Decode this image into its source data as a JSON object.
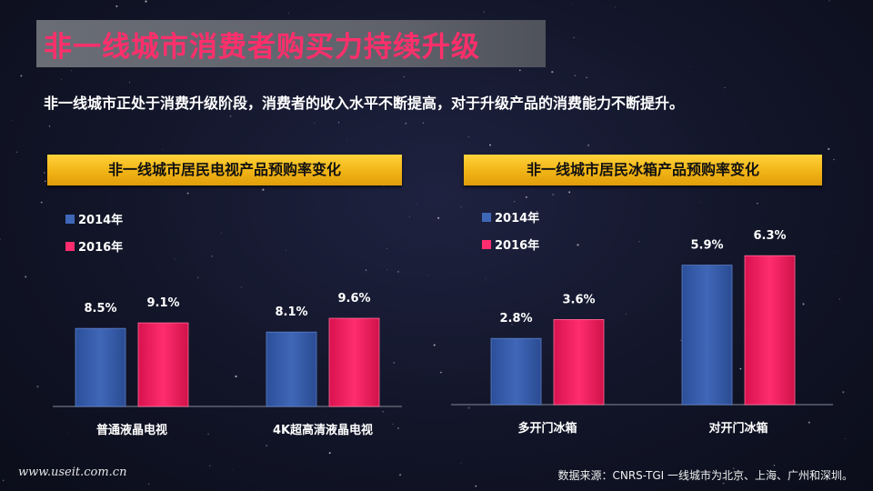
{
  "page": {
    "title": "非一线城市消费者购买力持续升级",
    "subtitle": "非一线城市正处于消费升级阶段，消费者的收入水平不断提高，对于升级产品的消费能力不断提升。",
    "footer_url": "www.useit.com.cn",
    "footer_source": "数据来源：CNRS-TGI 一线城市为北京、上海、广州和深圳。"
  },
  "colors": {
    "series_2014": "#3f67b8",
    "series_2016": "#ff2d6e",
    "title_text": "#ff2f6b",
    "panel_header": "#f5c21e"
  },
  "chart_data": [
    {
      "type": "bar",
      "title": "非一线城市居民电视产品预购率变化",
      "categories": [
        "普通液晶电视",
        "4K超高清液晶电视"
      ],
      "series": [
        {
          "name": "2014年",
          "values": [
            8.5,
            8.1
          ],
          "labels": [
            "8.5%",
            "8.1%"
          ]
        },
        {
          "name": "2016年",
          "values": [
            9.1,
            9.6
          ],
          "labels": [
            "9.1%",
            "9.6%"
          ]
        }
      ],
      "unit": "%",
      "legend": "top-left"
    },
    {
      "type": "bar",
      "title": "非一线城市居民冰箱产品预购率变化",
      "categories": [
        "多开门冰箱",
        "对开门冰箱"
      ],
      "series": [
        {
          "name": "2014年",
          "values": [
            2.8,
            5.9
          ],
          "labels": [
            "2.8%",
            "5.9%"
          ]
        },
        {
          "name": "2016年",
          "values": [
            3.6,
            6.3
          ],
          "labels": [
            "3.6%",
            "6.3%"
          ]
        }
      ],
      "unit": "%",
      "legend": "top-left"
    }
  ]
}
